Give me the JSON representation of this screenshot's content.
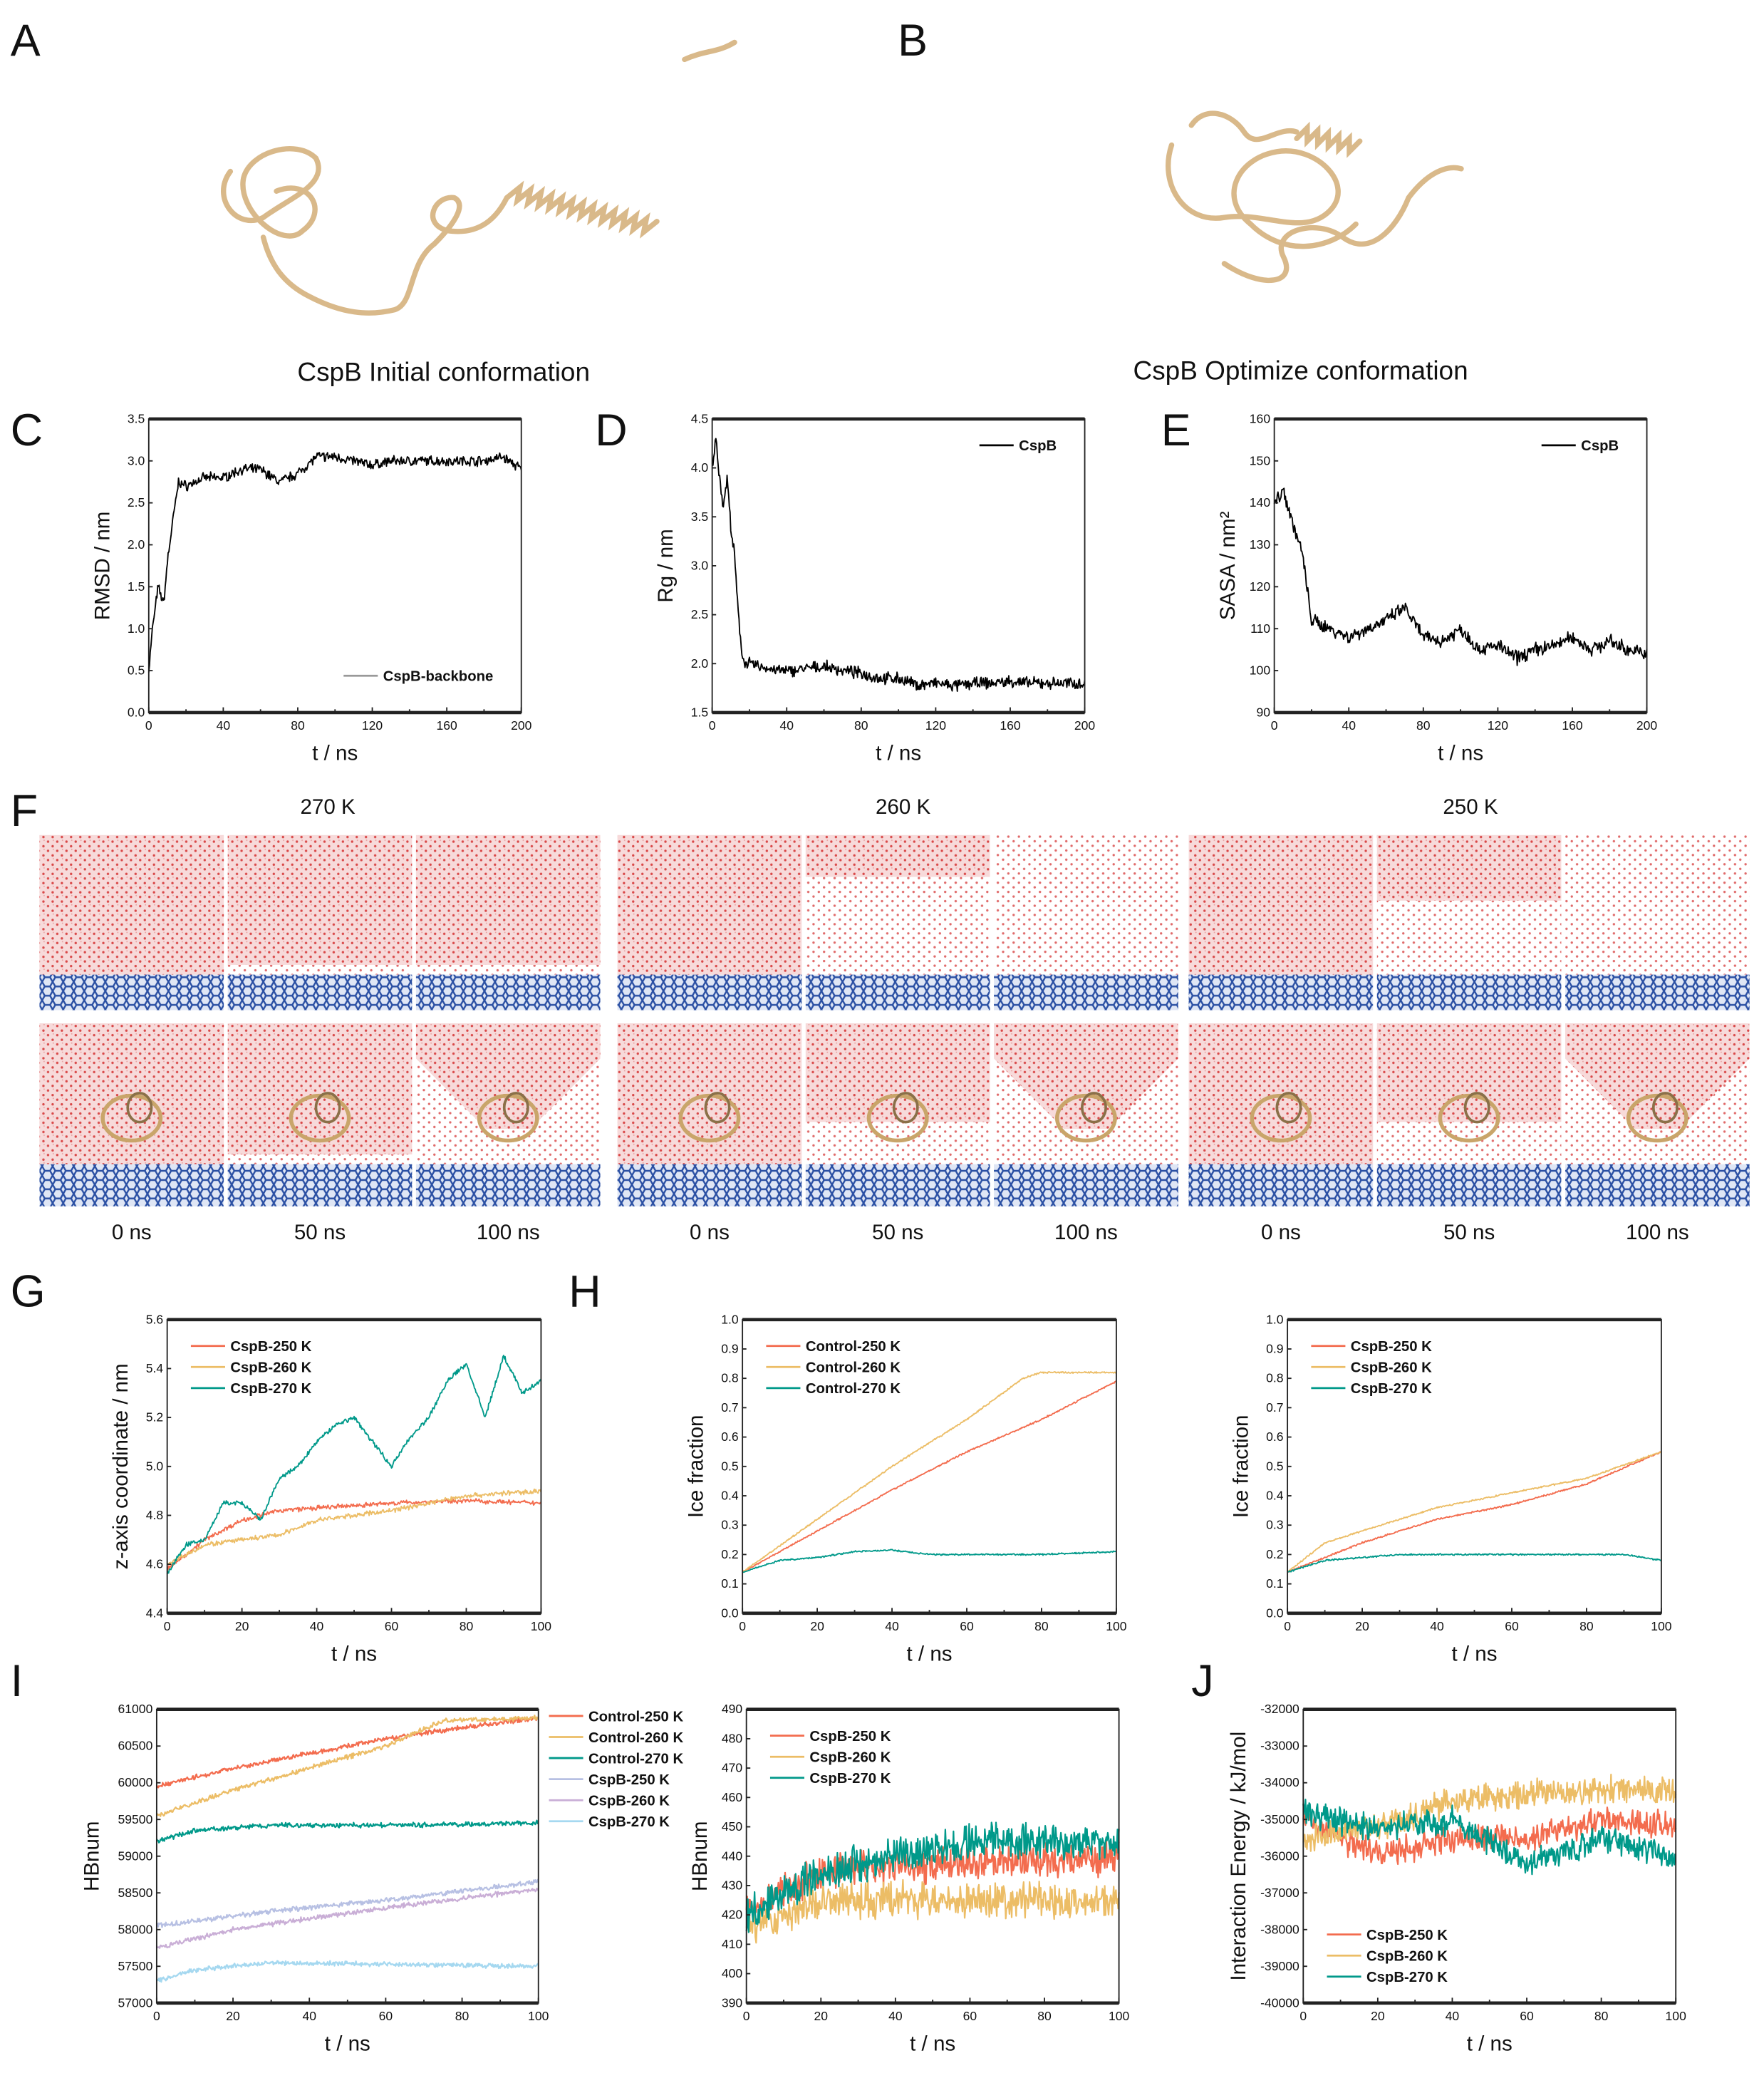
{
  "panels": {
    "A": "A",
    "B": "B",
    "C": "C",
    "D": "D",
    "E": "E",
    "F": "F",
    "G": "G",
    "H": "H",
    "I": "I",
    "J": "J"
  },
  "structures": {
    "initial_caption": "CspB Initial conformation",
    "optimized_caption": "CspB Optimize conformation",
    "protein_color": "#d9b98a"
  },
  "snapshots": {
    "temperatures": [
      "270 K",
      "260 K",
      "250 K"
    ],
    "times": [
      "0 ns",
      "50 ns",
      "100 ns"
    ],
    "colors": {
      "water": "#e06060",
      "ice": "#e87a7a",
      "graphene": "#2a4fa3",
      "protein": "#d9b98a"
    }
  },
  "chart_data": [
    {
      "id": "C",
      "type": "line",
      "xlabel": "t / ns",
      "ylabel": "RMSD / nm",
      "xlim": [
        0,
        200
      ],
      "ylim": [
        0,
        3.5
      ],
      "xticks": [
        "0",
        "40",
        "80",
        "120",
        "160",
        "200"
      ],
      "yticks": [
        "0.0",
        "0.5",
        "1.0",
        "1.5",
        "2.0",
        "2.5",
        "3.0",
        "3.5"
      ],
      "legend": "bottom-right",
      "grid": false,
      "series": [
        {
          "name": "CspB-backbone",
          "color": "#000000",
          "x": [
            0,
            2,
            5,
            8,
            10,
            13,
            16,
            20,
            30,
            40,
            50,
            60,
            70,
            80,
            90,
            100,
            110,
            120,
            130,
            140,
            150,
            160,
            170,
            180,
            190,
            200
          ],
          "y": [
            0.5,
            1.0,
            1.5,
            1.3,
            1.8,
            2.3,
            2.75,
            2.7,
            2.8,
            2.8,
            2.9,
            2.9,
            2.75,
            2.85,
            3.05,
            3.05,
            3.0,
            2.95,
            3.0,
            3.0,
            3.0,
            3.0,
            3.0,
            3.0,
            3.05,
            2.9
          ]
        }
      ]
    },
    {
      "id": "D",
      "type": "line",
      "xlabel": "t / ns",
      "ylabel": "Rg / nm",
      "xlim": [
        0,
        200
      ],
      "ylim": [
        1.5,
        4.5
      ],
      "xticks": [
        "0",
        "40",
        "80",
        "120",
        "160",
        "200"
      ],
      "yticks": [
        "1.5",
        "2.0",
        "2.5",
        "3.0",
        "3.5",
        "4.0",
        "4.5"
      ],
      "legend": "top-right",
      "grid": false,
      "series": [
        {
          "name": "CspB",
          "color": "#000000",
          "x": [
            0,
            2,
            4,
            6,
            8,
            10,
            12,
            14,
            16,
            18,
            20,
            30,
            40,
            50,
            60,
            70,
            80,
            90,
            100,
            110,
            120,
            130,
            140,
            150,
            160,
            170,
            180,
            190,
            200
          ],
          "y": [
            4.0,
            4.3,
            3.9,
            3.6,
            3.9,
            3.4,
            3.1,
            2.5,
            2.1,
            2.0,
            2.0,
            1.95,
            1.92,
            1.95,
            1.97,
            1.93,
            1.9,
            1.85,
            1.85,
            1.78,
            1.8,
            1.77,
            1.8,
            1.8,
            1.82,
            1.8,
            1.8,
            1.8,
            1.8
          ]
        }
      ]
    },
    {
      "id": "E",
      "type": "line",
      "xlabel": "t / ns",
      "ylabel": "SASA / nm²",
      "xlim": [
        0,
        200
      ],
      "ylim": [
        90,
        160
      ],
      "xticks": [
        "0",
        "40",
        "80",
        "120",
        "160",
        "200"
      ],
      "yticks": [
        "90",
        "100",
        "110",
        "120",
        "130",
        "140",
        "150",
        "160"
      ],
      "legend": "top-right",
      "grid": false,
      "series": [
        {
          "name": "CspB",
          "color": "#000000",
          "x": [
            0,
            5,
            10,
            15,
            20,
            30,
            40,
            50,
            60,
            70,
            80,
            90,
            100,
            110,
            120,
            130,
            140,
            150,
            160,
            170,
            180,
            190,
            200
          ],
          "y": [
            140,
            143,
            135,
            128,
            112,
            110,
            108,
            110,
            112,
            115,
            108,
            107,
            110,
            105,
            106,
            103,
            105,
            106,
            108,
            105,
            107,
            105,
            104
          ]
        }
      ]
    },
    {
      "id": "G",
      "type": "line",
      "xlabel": "t / ns",
      "ylabel": "z-axis coordinate / nm",
      "xlim": [
        0,
        100
      ],
      "ylim": [
        4.4,
        5.6
      ],
      "xticks": [
        "0",
        "20",
        "40",
        "60",
        "80",
        "100"
      ],
      "yticks": [
        "4.4",
        "4.6",
        "4.8",
        "5.0",
        "5.2",
        "5.4",
        "5.6"
      ],
      "legend": "top-left",
      "grid": false,
      "series": [
        {
          "name": "CspB-250 K",
          "color": "#f36c4e",
          "x": [
            0,
            10,
            20,
            30,
            40,
            60,
            80,
            100
          ],
          "y": [
            4.58,
            4.7,
            4.78,
            4.82,
            4.83,
            4.85,
            4.86,
            4.85
          ]
        },
        {
          "name": "CspB-260 K",
          "color": "#ecbd66",
          "x": [
            0,
            10,
            20,
            30,
            40,
            60,
            80,
            100
          ],
          "y": [
            4.6,
            4.68,
            4.7,
            4.72,
            4.78,
            4.82,
            4.88,
            4.9
          ]
        },
        {
          "name": "CspB-270 K",
          "color": "#00998a",
          "x": [
            0,
            5,
            10,
            15,
            20,
            25,
            30,
            35,
            40,
            45,
            50,
            55,
            60,
            65,
            70,
            75,
            80,
            85,
            90,
            95,
            100
          ],
          "y": [
            4.56,
            4.68,
            4.7,
            4.85,
            4.85,
            4.78,
            4.95,
            5.0,
            5.1,
            5.17,
            5.2,
            5.1,
            5.0,
            5.12,
            5.2,
            5.35,
            5.42,
            5.2,
            5.45,
            5.3,
            5.35
          ]
        }
      ]
    },
    {
      "id": "H-control",
      "type": "line",
      "xlabel": "t / ns",
      "ylabel": "Ice fraction",
      "xlim": [
        0,
        100
      ],
      "ylim": [
        0,
        1.0
      ],
      "xticks": [
        "0",
        "20",
        "40",
        "60",
        "80",
        "100"
      ],
      "yticks": [
        "0.0",
        "0.1",
        "0.2",
        "0.3",
        "0.4",
        "0.5",
        "0.6",
        "0.7",
        "0.8",
        "0.9",
        "1.0"
      ],
      "legend": "top-left",
      "grid": false,
      "series": [
        {
          "name": "Control-250 K",
          "color": "#f36c4e",
          "x": [
            0,
            20,
            40,
            60,
            80,
            100
          ],
          "y": [
            0.14,
            0.28,
            0.42,
            0.55,
            0.66,
            0.79
          ]
        },
        {
          "name": "Control-260 K",
          "color": "#ecbd66",
          "x": [
            0,
            20,
            40,
            60,
            75,
            80,
            100
          ],
          "y": [
            0.14,
            0.32,
            0.5,
            0.66,
            0.8,
            0.82,
            0.82
          ]
        },
        {
          "name": "Control-270 K",
          "color": "#00998a",
          "x": [
            0,
            10,
            20,
            30,
            40,
            50,
            60,
            80,
            100
          ],
          "y": [
            0.14,
            0.18,
            0.19,
            0.21,
            0.215,
            0.2,
            0.2,
            0.2,
            0.21
          ]
        }
      ]
    },
    {
      "id": "H-cspb",
      "type": "line",
      "xlabel": "t / ns",
      "ylabel": "Ice fraction",
      "xlim": [
        0,
        100
      ],
      "ylim": [
        0,
        1.0
      ],
      "xticks": [
        "0",
        "20",
        "40",
        "60",
        "80",
        "100"
      ],
      "yticks": [
        "0.0",
        "0.1",
        "0.2",
        "0.3",
        "0.4",
        "0.5",
        "0.6",
        "0.7",
        "0.8",
        "0.9",
        "1.0"
      ],
      "legend": "top-left",
      "grid": false,
      "series": [
        {
          "name": "CspB-250 K",
          "color": "#f36c4e",
          "x": [
            0,
            20,
            40,
            60,
            80,
            100
          ],
          "y": [
            0.14,
            0.24,
            0.32,
            0.37,
            0.44,
            0.55
          ]
        },
        {
          "name": "CspB-260 K",
          "color": "#ecbd66",
          "x": [
            0,
            10,
            20,
            40,
            60,
            80,
            100
          ],
          "y": [
            0.14,
            0.24,
            0.28,
            0.36,
            0.41,
            0.46,
            0.55
          ]
        },
        {
          "name": "CspB-270 K",
          "color": "#00998a",
          "x": [
            0,
            10,
            30,
            60,
            90,
            100
          ],
          "y": [
            0.14,
            0.18,
            0.2,
            0.2,
            0.2,
            0.18
          ]
        }
      ]
    },
    {
      "id": "I-total",
      "type": "line",
      "xlabel": "t / ns",
      "ylabel": "HBnum",
      "xlim": [
        0,
        100
      ],
      "ylim": [
        57000,
        61000
      ],
      "xticks": [
        "0",
        "20",
        "40",
        "60",
        "80",
        "100"
      ],
      "yticks": [
        "57000",
        "57500",
        "58000",
        "58500",
        "59000",
        "59500",
        "60000",
        "60500",
        "61000"
      ],
      "legend": "outside-right",
      "grid": false,
      "series": [
        {
          "name": "Control-250 K",
          "color": "#f36c4e",
          "x": [
            0,
            20,
            40,
            60,
            80,
            100
          ],
          "y": [
            59950,
            60200,
            60400,
            60600,
            60750,
            60880
          ]
        },
        {
          "name": "Control-260 K",
          "color": "#ecbd66",
          "x": [
            0,
            20,
            40,
            60,
            75,
            100
          ],
          "y": [
            59550,
            59900,
            60200,
            60500,
            60850,
            60880
          ]
        },
        {
          "name": "Control-270 K",
          "color": "#00998a",
          "x": [
            0,
            10,
            30,
            60,
            100
          ],
          "y": [
            59200,
            59350,
            59420,
            59420,
            59450
          ]
        },
        {
          "name": "CspB-250 K",
          "color": "#b7c0e3",
          "x": [
            0,
            30,
            60,
            100
          ],
          "y": [
            58050,
            58250,
            58400,
            58650
          ]
        },
        {
          "name": "CspB-260 K",
          "color": "#c9aed6",
          "x": [
            0,
            20,
            40,
            60,
            100
          ],
          "y": [
            57750,
            58000,
            58150,
            58300,
            58550
          ]
        },
        {
          "name": "CspB-270 K",
          "color": "#a5d8f0",
          "x": [
            0,
            10,
            30,
            60,
            100
          ],
          "y": [
            57300,
            57450,
            57550,
            57530,
            57500
          ]
        }
      ]
    },
    {
      "id": "I-protein",
      "type": "line",
      "xlabel": "t / ns",
      "ylabel": "HBnum",
      "xlim": [
        0,
        100
      ],
      "ylim": [
        390,
        490
      ],
      "xticks": [
        "0",
        "20",
        "40",
        "60",
        "80",
        "100"
      ],
      "yticks": [
        "390",
        "400",
        "410",
        "420",
        "430",
        "440",
        "450",
        "460",
        "470",
        "480",
        "490"
      ],
      "legend": "top-left",
      "grid": false,
      "series": [
        {
          "name": "CspB-250 K",
          "color": "#f36c4e",
          "x": [
            0,
            20,
            100
          ],
          "y": [
            420,
            435,
            440
          ]
        },
        {
          "name": "CspB-260 K",
          "color": "#ecbd66",
          "x": [
            0,
            20,
            100
          ],
          "y": [
            415,
            425,
            425
          ]
        },
        {
          "name": "CspB-270 K",
          "color": "#00998a",
          "x": [
            0,
            20,
            60,
            100
          ],
          "y": [
            420,
            435,
            445,
            445
          ]
        }
      ]
    },
    {
      "id": "J",
      "type": "line",
      "xlabel": "t / ns",
      "ylabel": "Interaction Energy / kJ/mol",
      "xlim": [
        0,
        100
      ],
      "ylim": [
        -40000,
        -32000
      ],
      "xticks": [
        "0",
        "20",
        "40",
        "60",
        "80",
        "100"
      ],
      "yticks": [
        "-40000",
        "-39000",
        "-38000",
        "-37000",
        "-36000",
        "-35000",
        "-34000",
        "-33000",
        "-32000"
      ],
      "legend": "bottom-left",
      "grid": false,
      "series": [
        {
          "name": "CspB-250 K",
          "color": "#f36c4e",
          "x": [
            0,
            20,
            40,
            60,
            80,
            100
          ],
          "y": [
            -35000,
            -36000,
            -35500,
            -35500,
            -35000,
            -35200
          ]
        },
        {
          "name": "CspB-260 K",
          "color": "#ecbd66",
          "x": [
            0,
            20,
            40,
            60,
            80,
            100
          ],
          "y": [
            -35500,
            -35200,
            -34500,
            -34300,
            -34200,
            -34200
          ]
        },
        {
          "name": "CspB-270 K",
          "color": "#00998a",
          "x": [
            0,
            20,
            40,
            60,
            80,
            100
          ],
          "y": [
            -34800,
            -35300,
            -35000,
            -36200,
            -35500,
            -36000
          ]
        }
      ]
    }
  ]
}
